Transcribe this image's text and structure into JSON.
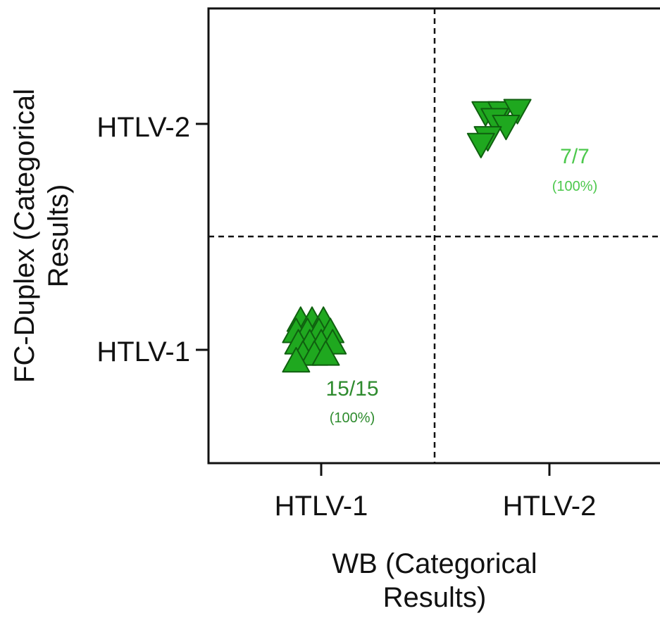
{
  "chart_data": {
    "type": "scatter",
    "title": "",
    "xlabel_lines": [
      "WB  (Categorical",
      "Results)"
    ],
    "ylabel_lines": [
      "FC-Duplex (Categorical",
      "Results)"
    ],
    "x_categories": [
      "HTLV-1",
      "HTLV-2"
    ],
    "y_categories": [
      "HTLV-1",
      "HTLV-2"
    ],
    "grid": false,
    "colors": {
      "axis": "#111111",
      "markers": "#1fa81f",
      "marker_edge": "#0f5f0f",
      "htlv1_annotation": "#2e8b2e",
      "htlv2_annotation": "#4cc84c"
    },
    "series": [
      {
        "marker": "triangle-up",
        "x_category": "HTLV-1",
        "y_category": "HTLV-1",
        "count": 15,
        "points": [
          [
            -0.09,
            0.13
          ],
          [
            -0.04,
            0.13
          ],
          [
            0.01,
            0.13
          ],
          [
            -0.11,
            0.08
          ],
          [
            -0.06,
            0.08
          ],
          [
            -0.01,
            0.08
          ],
          [
            0.04,
            0.08
          ],
          [
            -0.1,
            0.03
          ],
          [
            -0.05,
            0.03
          ],
          [
            0.0,
            0.03
          ],
          [
            0.05,
            0.03
          ],
          [
            -0.08,
            -0.02
          ],
          [
            -0.03,
            -0.02
          ],
          [
            0.02,
            -0.02
          ],
          [
            -0.11,
            -0.05
          ]
        ],
        "annotation": {
          "ratio": "15/15",
          "percent": "(100%)"
        }
      },
      {
        "marker": "triangle-down",
        "x_category": "HTLV-2",
        "y_category": "HTLV-2",
        "count": 7,
        "points": [
          [
            -0.28,
            0.05
          ],
          [
            -0.21,
            0.05
          ],
          [
            -0.14,
            0.06
          ],
          [
            -0.24,
            0.02
          ],
          [
            -0.19,
            -0.01
          ],
          [
            -0.27,
            -0.06
          ],
          [
            -0.3,
            -0.09
          ]
        ],
        "annotation": {
          "ratio": "7/7",
          "percent": "(100%)"
        }
      }
    ]
  }
}
